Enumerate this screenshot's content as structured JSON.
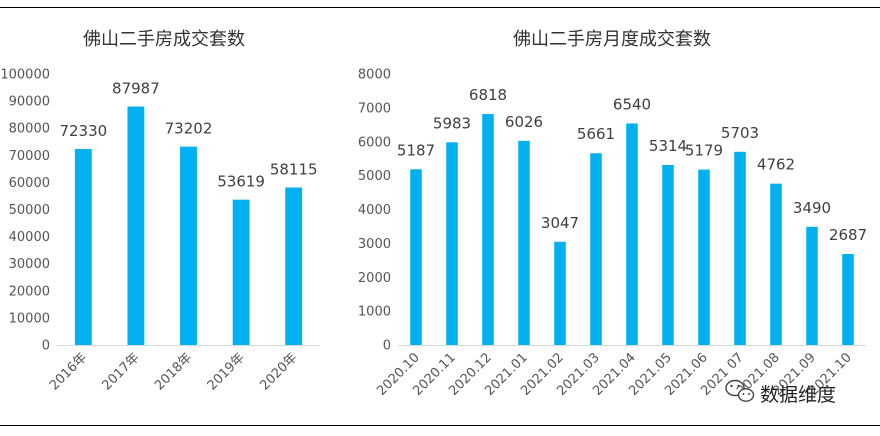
{
  "chart_data": [
    {
      "type": "bar",
      "title": "佛山二手房成交套数",
      "categories": [
        "2016年",
        "2017年",
        "2018年",
        "2019年",
        "2020年"
      ],
      "values": [
        72330,
        87987,
        73202,
        53619,
        58115
      ],
      "ylim": [
        0,
        100000
      ],
      "yticks": [
        "0",
        "10000",
        "20000",
        "30000",
        "40000",
        "50000",
        "60000",
        "70000",
        "80000",
        "90000",
        "100000"
      ],
      "color": "#00b0f0",
      "data_labels": true,
      "grid": false
    },
    {
      "type": "bar",
      "title": "佛山二手房月度成交套数",
      "categories": [
        "2020.10",
        "2020.11",
        "2020.12",
        "2021.01",
        "2021.02",
        "2021.03",
        "2021.04",
        "2021.05",
        "2021.06",
        "2021 07",
        "2021.08",
        "2021.09",
        "2021.10"
      ],
      "values": [
        5187,
        5983,
        6818,
        6026,
        3047,
        5661,
        6540,
        5314,
        5179,
        5703,
        4762,
        3490,
        2687
      ],
      "ylim": [
        0,
        8000
      ],
      "yticks": [
        "0",
        "1000",
        "2000",
        "3000",
        "4000",
        "5000",
        "6000",
        "7000",
        "8000"
      ],
      "color": "#00b0f0",
      "data_labels": true,
      "grid": false
    }
  ],
  "watermark": {
    "text": "数据维度",
    "icon": "wechat-icon"
  }
}
